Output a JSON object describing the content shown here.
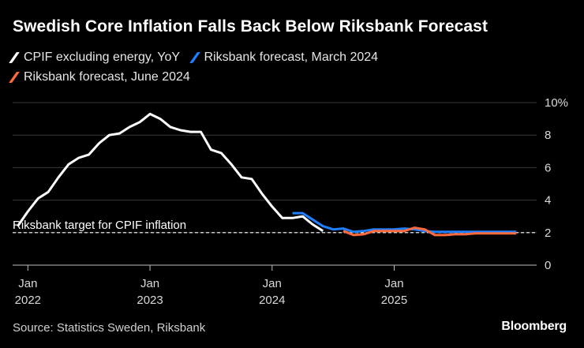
{
  "chart_data": {
    "type": "line",
    "title": "Swedish Core Inflation Falls Back Below Riksbank Forecast",
    "ylabel": "",
    "ylim": [
      0,
      10
    ],
    "y_ticks": [
      0,
      2,
      4,
      6,
      8,
      10
    ],
    "y_tick_labels": [
      "0",
      "2",
      "4",
      "6",
      "8",
      "10%"
    ],
    "x_ticks": [
      {
        "t": 0,
        "month": "Jan",
        "year": "2022"
      },
      {
        "t": 12,
        "month": "Jan",
        "year": "2023"
      },
      {
        "t": 24,
        "month": "Jan",
        "year": "2024"
      },
      {
        "t": 36,
        "month": "Jan",
        "year": "2025"
      }
    ],
    "xlim": [
      -1.5,
      50
    ],
    "target": {
      "value": 2,
      "label": "Riksbank target for CPIF inflation"
    },
    "series": [
      {
        "name": "CPIF excluding energy, YoY",
        "color": "#ffffff",
        "t": [
          -1,
          0,
          1,
          2,
          3,
          4,
          5,
          6,
          7,
          8,
          9,
          10,
          11,
          12,
          13,
          14,
          15,
          16,
          17,
          18,
          19,
          20,
          21,
          22,
          23,
          24,
          25,
          26,
          27,
          28,
          29
        ],
        "values": [
          2.4,
          3.3,
          4.1,
          4.5,
          5.4,
          6.2,
          6.6,
          6.8,
          7.5,
          8.0,
          8.1,
          8.5,
          8.8,
          9.3,
          9.0,
          8.5,
          8.3,
          8.2,
          8.2,
          7.1,
          6.9,
          6.2,
          5.4,
          5.3,
          4.4,
          3.6,
          2.9,
          2.9,
          3.0,
          2.5,
          2.1
        ]
      },
      {
        "name": "Riksbank forecast, March 2024",
        "color": "#1f7fff",
        "t": [
          26,
          27,
          28,
          29,
          30,
          31,
          32,
          33,
          34,
          35,
          36,
          37,
          38,
          39,
          40,
          41,
          42,
          43,
          44,
          45,
          46,
          47,
          48
        ],
        "values": [
          3.2,
          3.2,
          2.8,
          2.4,
          2.2,
          2.25,
          2.05,
          2.1,
          2.2,
          2.2,
          2.2,
          2.25,
          2.2,
          2.1,
          2.05,
          2.05,
          2.05,
          2.05,
          2.05,
          2.05,
          2.05,
          2.05,
          2.05
        ]
      },
      {
        "name": "Riksbank forecast, June 2024",
        "color": "#ff6a3d",
        "t": [
          31,
          32,
          33,
          34,
          35,
          36,
          37,
          38,
          39,
          40,
          41,
          42,
          43,
          44,
          45,
          46,
          47,
          48
        ],
        "values": [
          2.1,
          1.85,
          1.9,
          2.1,
          2.1,
          2.1,
          2.1,
          2.3,
          2.2,
          1.85,
          1.85,
          1.9,
          1.9,
          1.95,
          1.95,
          1.95,
          1.95,
          1.95
        ]
      }
    ]
  },
  "footer": {
    "source": "Source: Statistics Sweden, Riksbank",
    "brand": "Bloomberg"
  }
}
